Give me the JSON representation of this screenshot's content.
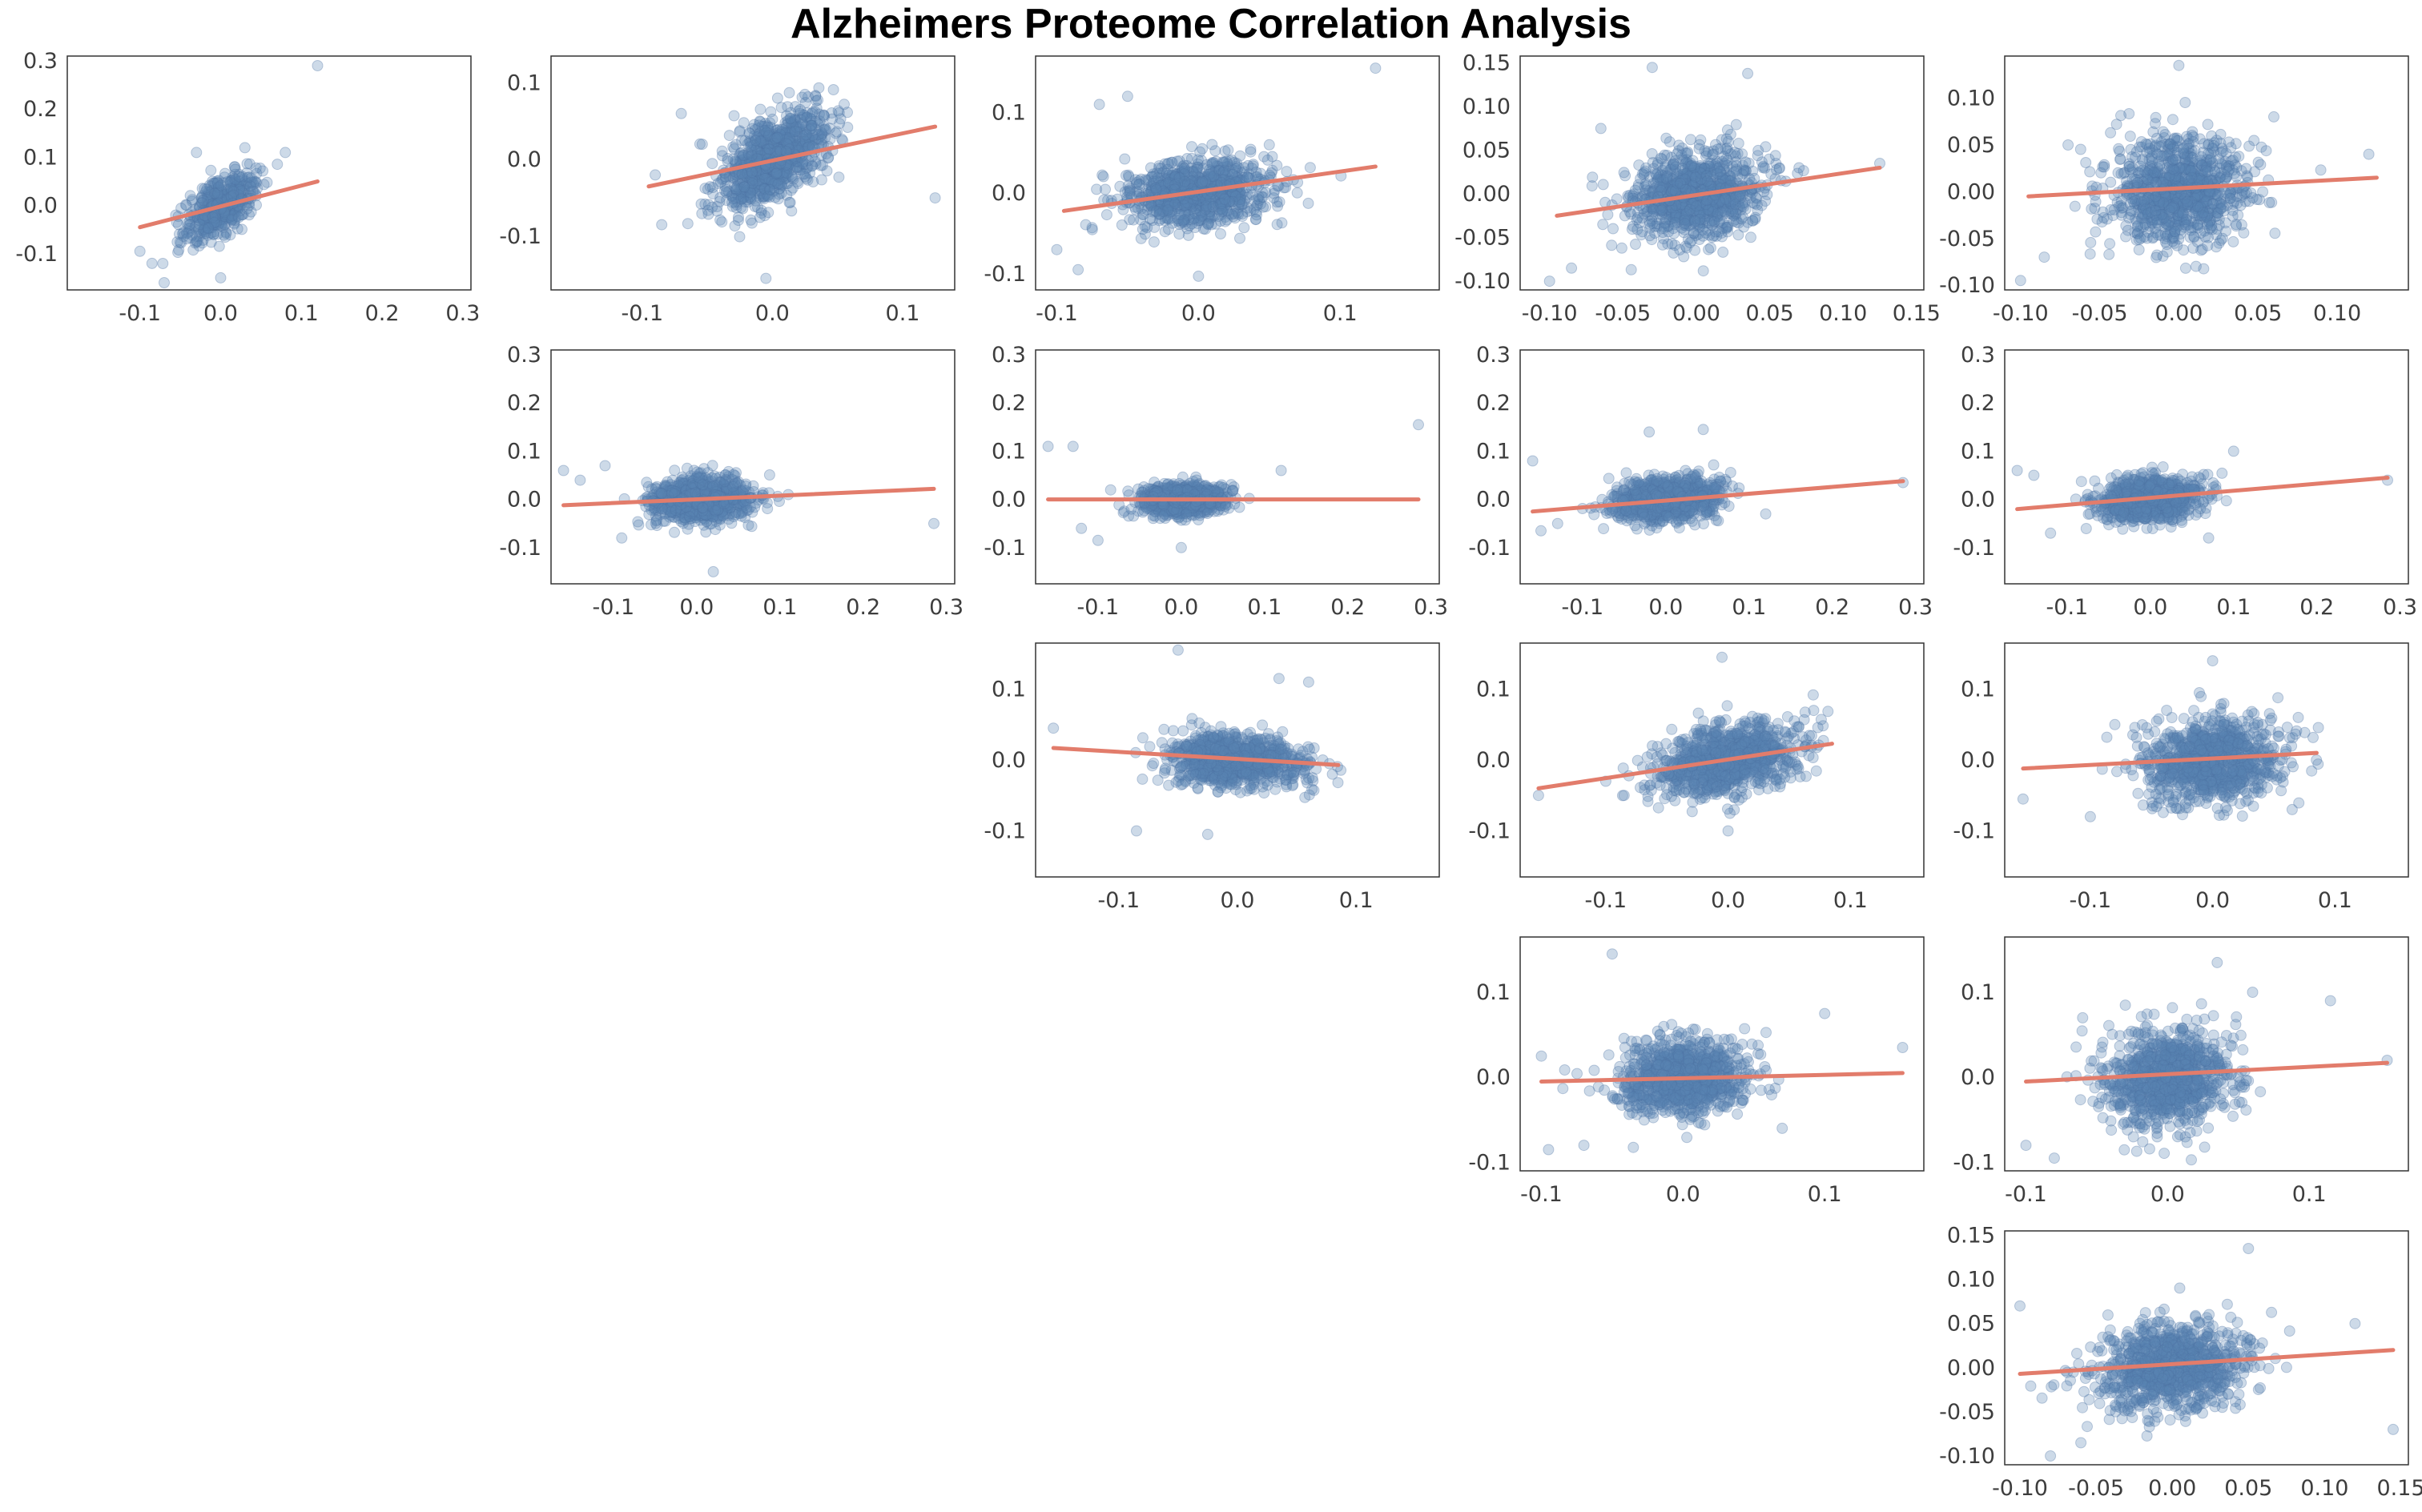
{
  "title": "Alzheimers Proteome Correlation Analysis",
  "colors": {
    "point": "#5b84b3",
    "point_edge": "#4c73a3",
    "fit": "#e27c6b",
    "frame": "#333333",
    "text": "#3d3d3d"
  },
  "chart_data": [
    {
      "type": "scatter",
      "row": 0,
      "col": 0,
      "title": "",
      "xlabel": "",
      "ylabel": "",
      "xlim": [
        -0.19,
        0.31
      ],
      "ylim": [
        -0.175,
        0.31
      ],
      "xticks": [
        "-0.1",
        "0.0",
        "0.1",
        "0.2",
        "0.3"
      ],
      "yticks": [
        "-0.1",
        "0.0",
        "0.1",
        "0.2",
        "0.3"
      ],
      "cloud": {
        "n": 520,
        "cx": 0.0,
        "cy": 0.0,
        "sx": 0.022,
        "sy": 0.035,
        "rho": 0.6
      },
      "outliers": [
        [
          -0.1,
          -0.095
        ],
        [
          -0.085,
          -0.12
        ],
        [
          -0.07,
          -0.16
        ],
        [
          -0.03,
          0.11
        ],
        [
          0.03,
          0.12
        ],
        [
          0.08,
          0.11
        ],
        [
          0.0,
          -0.15
        ],
        [
          0.12,
          0.29
        ]
      ],
      "fit": [
        [
          -0.1,
          -0.045
        ],
        [
          0.12,
          0.05
        ]
      ]
    },
    {
      "type": "scatter",
      "row": 0,
      "col": 1,
      "title": "",
      "xlabel": "",
      "ylabel": "",
      "xlim": [
        -0.17,
        0.14
      ],
      "ylim": [
        -0.17,
        0.135
      ],
      "xticks": [
        "-0.1",
        "0.0",
        "0.1"
      ],
      "yticks": [
        "-0.1",
        "0.0",
        "0.1"
      ],
      "cloud": {
        "n": 1000,
        "cx": 0.0,
        "cy": 0.0,
        "sx": 0.02,
        "sy": 0.03,
        "rho": 0.55
      },
      "outliers": [
        [
          -0.07,
          0.06
        ],
        [
          -0.09,
          -0.02
        ],
        [
          -0.085,
          -0.085
        ],
        [
          0.125,
          -0.05
        ],
        [
          0.025,
          0.085
        ],
        [
          -0.005,
          -0.155
        ]
      ],
      "fit": [
        [
          -0.095,
          -0.035
        ],
        [
          0.125,
          0.043
        ]
      ]
    },
    {
      "type": "scatter",
      "row": 0,
      "col": 2,
      "title": "",
      "xlabel": "",
      "ylabel": "",
      "xlim": [
        -0.115,
        0.17
      ],
      "ylim": [
        -0.12,
        0.17
      ],
      "xticks": [
        "-0.1",
        "0.0",
        "0.1"
      ],
      "yticks": [
        "-0.1",
        "0.0",
        "0.1"
      ],
      "cloud": {
        "n": 1000,
        "cx": 0.0,
        "cy": 0.0,
        "sx": 0.025,
        "sy": 0.02,
        "rho": 0.2
      },
      "outliers": [
        [
          -0.1,
          -0.07
        ],
        [
          -0.085,
          -0.095
        ],
        [
          -0.07,
          0.11
        ],
        [
          -0.05,
          0.12
        ],
        [
          0.125,
          0.155
        ],
        [
          0.0,
          -0.103
        ],
        [
          0.05,
          0.06
        ]
      ],
      "fit": [
        [
          -0.095,
          -0.022
        ],
        [
          0.125,
          0.033
        ]
      ]
    },
    {
      "type": "scatter",
      "row": 0,
      "col": 3,
      "title": "",
      "xlabel": "",
      "ylabel": "",
      "xlim": [
        -0.12,
        0.155
      ],
      "ylim": [
        -0.11,
        0.158
      ],
      "xticks": [
        "-0.10",
        "-0.05",
        "0.00",
        "0.05",
        "0.10",
        "0.15"
      ],
      "yticks": [
        "-0.10",
        "-0.05",
        "0.00",
        "0.05",
        "0.10",
        "0.15"
      ],
      "cloud": {
        "n": 1000,
        "cx": 0.0,
        "cy": 0.0,
        "sx": 0.022,
        "sy": 0.025,
        "rho": 0.15
      },
      "outliers": [
        [
          -0.1,
          -0.1
        ],
        [
          -0.085,
          -0.085
        ],
        [
          -0.03,
          0.145
        ],
        [
          0.035,
          0.138
        ],
        [
          0.07,
          0.03
        ],
        [
          -0.065,
          0.075
        ],
        [
          0.125,
          0.035
        ]
      ],
      "fit": [
        [
          -0.095,
          -0.025
        ],
        [
          0.125,
          0.03
        ]
      ]
    },
    {
      "type": "scatter",
      "row": 0,
      "col": 4,
      "title": "",
      "xlabel": "",
      "ylabel": "",
      "xlim": [
        -0.11,
        0.145
      ],
      "ylim": [
        -0.105,
        0.145
      ],
      "xticks": [
        "-0.10",
        "-0.05",
        "0.00",
        "0.05",
        "0.10"
      ],
      "yticks": [
        "-0.10",
        "-0.05",
        "0.00",
        "0.05",
        "0.10"
      ],
      "cloud": {
        "n": 1000,
        "cx": 0.0,
        "cy": 0.0,
        "sx": 0.022,
        "sy": 0.028,
        "rho": 0.05
      },
      "outliers": [
        [
          -0.1,
          -0.095
        ],
        [
          -0.085,
          -0.07
        ],
        [
          0.0,
          0.135
        ],
        [
          0.12,
          0.04
        ],
        [
          -0.07,
          0.05
        ],
        [
          0.06,
          0.08
        ]
      ],
      "fit": [
        [
          -0.095,
          -0.005
        ],
        [
          0.125,
          0.015
        ]
      ]
    },
    {
      "type": "scatter",
      "row": 1,
      "col": 1,
      "title": "",
      "xlabel": "",
      "ylabel": "",
      "xlim": [
        -0.175,
        0.31
      ],
      "ylim": [
        -0.175,
        0.31
      ],
      "xticks": [
        "-0.1",
        "0.0",
        "0.1",
        "0.2",
        "0.3"
      ],
      "yticks": [
        "-0.1",
        "0.0",
        "0.1",
        "0.2",
        "0.3"
      ],
      "cloud": {
        "n": 1000,
        "cx": 0.005,
        "cy": 0.0,
        "sx": 0.028,
        "sy": 0.022,
        "rho": 0.1
      },
      "outliers": [
        [
          -0.16,
          0.06
        ],
        [
          -0.14,
          0.04
        ],
        [
          -0.09,
          -0.08
        ],
        [
          0.11,
          0.01
        ],
        [
          0.285,
          -0.05
        ],
        [
          0.02,
          -0.15
        ],
        [
          -0.11,
          0.07
        ]
      ],
      "fit": [
        [
          -0.16,
          -0.012
        ],
        [
          0.285,
          0.022
        ]
      ]
    },
    {
      "type": "scatter",
      "row": 1,
      "col": 2,
      "title": "",
      "xlabel": "",
      "ylabel": "",
      "xlim": [
        -0.175,
        0.31
      ],
      "ylim": [
        -0.175,
        0.31
      ],
      "xticks": [
        "-0.1",
        "0.0",
        "0.1",
        "0.2",
        "0.3"
      ],
      "yticks": [
        "-0.1",
        "0.0",
        "0.1",
        "0.2",
        "0.3"
      ],
      "cloud": {
        "n": 1000,
        "cx": 0.0,
        "cy": 0.0,
        "sx": 0.025,
        "sy": 0.015,
        "rho": 0.0
      },
      "outliers": [
        [
          -0.16,
          0.11
        ],
        [
          -0.13,
          0.11
        ],
        [
          -0.12,
          -0.06
        ],
        [
          -0.1,
          -0.085
        ],
        [
          0.285,
          0.155
        ],
        [
          0.12,
          0.06
        ],
        [
          0.0,
          -0.1
        ]
      ],
      "fit": [
        [
          -0.16,
          0.0
        ],
        [
          0.285,
          0.0
        ]
      ]
    },
    {
      "type": "scatter",
      "row": 1,
      "col": 3,
      "title": "",
      "xlabel": "",
      "ylabel": "",
      "xlim": [
        -0.175,
        0.31
      ],
      "ylim": [
        -0.175,
        0.31
      ],
      "xticks": [
        "-0.1",
        "0.0",
        "0.1",
        "0.2",
        "0.3"
      ],
      "yticks": [
        "-0.1",
        "0.0",
        "0.1",
        "0.2",
        "0.3"
      ],
      "cloud": {
        "n": 1000,
        "cx": 0.0,
        "cy": 0.0,
        "sx": 0.03,
        "sy": 0.022,
        "rho": 0.2
      },
      "outliers": [
        [
          -0.16,
          0.08
        ],
        [
          -0.15,
          -0.065
        ],
        [
          -0.13,
          -0.05
        ],
        [
          0.045,
          0.145
        ],
        [
          -0.02,
          0.14
        ],
        [
          0.285,
          0.035
        ],
        [
          0.12,
          -0.03
        ]
      ],
      "fit": [
        [
          -0.16,
          -0.025
        ],
        [
          0.285,
          0.038
        ]
      ]
    },
    {
      "type": "scatter",
      "row": 1,
      "col": 4,
      "title": "",
      "xlabel": "",
      "ylabel": "",
      "xlim": [
        -0.175,
        0.31
      ],
      "ylim": [
        -0.175,
        0.31
      ],
      "xticks": [
        "-0.1",
        "0.0",
        "0.1",
        "0.2",
        "0.3"
      ],
      "yticks": [
        "-0.1",
        "0.0",
        "0.1",
        "0.2",
        "0.3"
      ],
      "cloud": {
        "n": 1000,
        "cx": 0.0,
        "cy": 0.0,
        "sx": 0.03,
        "sy": 0.022,
        "rho": 0.15
      },
      "outliers": [
        [
          -0.16,
          0.06
        ],
        [
          -0.14,
          0.05
        ],
        [
          -0.12,
          -0.07
        ],
        [
          0.1,
          0.1
        ],
        [
          0.285,
          0.04
        ],
        [
          0.07,
          -0.08
        ]
      ],
      "fit": [
        [
          -0.16,
          -0.02
        ],
        [
          0.285,
          0.045
        ]
      ]
    },
    {
      "type": "scatter",
      "row": 2,
      "col": 2,
      "title": "",
      "xlabel": "",
      "ylabel": "",
      "xlim": [
        -0.17,
        0.17
      ],
      "ylim": [
        -0.165,
        0.165
      ],
      "xticks": [
        "-0.1",
        "0.0",
        "0.1"
      ],
      "yticks": [
        "-0.1",
        "0.0",
        "0.1"
      ],
      "cloud": {
        "n": 1000,
        "cx": 0.0,
        "cy": 0.0,
        "sx": 0.028,
        "sy": 0.018,
        "rho": -0.15
      },
      "outliers": [
        [
          -0.155,
          0.045
        ],
        [
          -0.05,
          0.155
        ],
        [
          0.035,
          0.115
        ],
        [
          0.06,
          0.11
        ],
        [
          -0.085,
          -0.1
        ],
        [
          -0.025,
          -0.105
        ],
        [
          0.08,
          -0.02
        ]
      ],
      "fit": [
        [
          -0.155,
          0.017
        ],
        [
          0.085,
          -0.007
        ]
      ]
    },
    {
      "type": "scatter",
      "row": 2,
      "col": 3,
      "title": "",
      "xlabel": "",
      "ylabel": "",
      "xlim": [
        -0.17,
        0.16
      ],
      "ylim": [
        -0.165,
        0.165
      ],
      "xticks": [
        "-0.1",
        "0.0",
        "0.1"
      ],
      "yticks": [
        "-0.1",
        "0.0",
        "0.1"
      ],
      "cloud": {
        "n": 1000,
        "cx": 0.0,
        "cy": 0.0,
        "sx": 0.028,
        "sy": 0.025,
        "rho": 0.4
      },
      "outliers": [
        [
          -0.155,
          -0.05
        ],
        [
          -0.085,
          -0.05
        ],
        [
          -0.1,
          -0.03
        ],
        [
          -0.005,
          0.145
        ],
        [
          0.07,
          0.07
        ],
        [
          0.0,
          -0.1
        ]
      ],
      "fit": [
        [
          -0.155,
          -0.04
        ],
        [
          0.085,
          0.023
        ]
      ]
    },
    {
      "type": "scatter",
      "row": 2,
      "col": 4,
      "title": "",
      "xlabel": "",
      "ylabel": "",
      "xlim": [
        -0.17,
        0.16
      ],
      "ylim": [
        -0.165,
        0.165
      ],
      "xticks": [
        "-0.1",
        "0.0",
        "0.1"
      ],
      "yticks": [
        "-0.1",
        "0.0",
        "0.1"
      ],
      "cloud": {
        "n": 1000,
        "cx": 0.0,
        "cy": 0.0,
        "sx": 0.028,
        "sy": 0.03,
        "rho": 0.1
      },
      "outliers": [
        [
          -0.155,
          -0.055
        ],
        [
          -0.1,
          -0.08
        ],
        [
          0.0,
          0.14
        ],
        [
          0.07,
          0.06
        ],
        [
          0.065,
          -0.07
        ],
        [
          -0.08,
          0.05
        ]
      ],
      "fit": [
        [
          -0.155,
          -0.012
        ],
        [
          0.085,
          0.01
        ]
      ]
    },
    {
      "type": "scatter",
      "row": 3,
      "col": 3,
      "title": "",
      "xlabel": "",
      "ylabel": "",
      "xlim": [
        -0.115,
        0.17
      ],
      "ylim": [
        -0.11,
        0.165
      ],
      "xticks": [
        "-0.1",
        "0.0",
        "0.1"
      ],
      "yticks": [
        "-0.1",
        "0.0",
        "0.1"
      ],
      "cloud": {
        "n": 1000,
        "cx": 0.0,
        "cy": 0.0,
        "sx": 0.022,
        "sy": 0.022,
        "rho": 0.05
      },
      "outliers": [
        [
          -0.1,
          0.025
        ],
        [
          -0.095,
          -0.085
        ],
        [
          -0.07,
          -0.08
        ],
        [
          -0.05,
          0.145
        ],
        [
          0.1,
          0.075
        ],
        [
          0.155,
          0.035
        ],
        [
          0.07,
          -0.06
        ]
      ],
      "fit": [
        [
          -0.1,
          -0.005
        ],
        [
          0.155,
          0.005
        ]
      ]
    },
    {
      "type": "scatter",
      "row": 3,
      "col": 4,
      "title": "",
      "xlabel": "",
      "ylabel": "",
      "xlim": [
        -0.115,
        0.17
      ],
      "ylim": [
        -0.11,
        0.165
      ],
      "xticks": [
        "-0.1",
        "0.0",
        "0.1"
      ],
      "yticks": [
        "-0.1",
        "0.0",
        "0.1"
      ],
      "cloud": {
        "n": 1000,
        "cx": 0.0,
        "cy": 0.0,
        "sx": 0.022,
        "sy": 0.028,
        "rho": 0.1
      },
      "outliers": [
        [
          -0.1,
          -0.08
        ],
        [
          -0.08,
          -0.095
        ],
        [
          0.035,
          0.135
        ],
        [
          0.115,
          0.09
        ],
        [
          0.155,
          0.02
        ],
        [
          0.06,
          0.1
        ],
        [
          -0.06,
          0.07
        ]
      ],
      "fit": [
        [
          -0.1,
          -0.005
        ],
        [
          0.155,
          0.017
        ]
      ]
    },
    {
      "type": "scatter",
      "row": 4,
      "col": 4,
      "title": "",
      "xlabel": "",
      "ylabel": "",
      "xlim": [
        -0.11,
        0.155
      ],
      "ylim": [
        -0.11,
        0.155
      ],
      "xticks": [
        "-0.10",
        "-0.05",
        "0.00",
        "0.05",
        "0.10",
        "0.15"
      ],
      "yticks": [
        "-0.10",
        "-0.05",
        "0.00",
        "0.05",
        "0.10",
        "0.15"
      ],
      "cloud": {
        "n": 1000,
        "cx": 0.0,
        "cy": 0.0,
        "sx": 0.025,
        "sy": 0.025,
        "rho": 0.1
      },
      "outliers": [
        [
          -0.1,
          0.07
        ],
        [
          -0.08,
          -0.1
        ],
        [
          0.05,
          0.135
        ],
        [
          0.12,
          0.05
        ],
        [
          0.145,
          -0.07
        ],
        [
          -0.06,
          -0.085
        ]
      ],
      "fit": [
        [
          -0.1,
          -0.007
        ],
        [
          0.145,
          0.02
        ]
      ]
    }
  ]
}
